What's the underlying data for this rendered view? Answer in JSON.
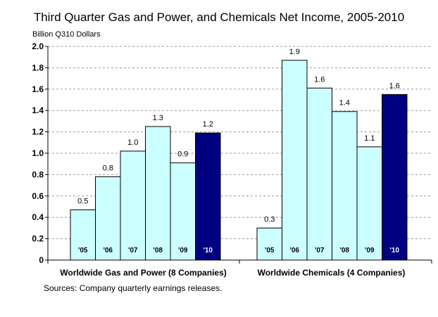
{
  "chart_data": {
    "type": "bar",
    "title": "Third Quarter Gas and Power, and Chemicals Net Income, 2005-2010",
    "ylabel": "Billion Q310 Dollars",
    "ylim": [
      0,
      2.0
    ],
    "yticks": [
      "0",
      "0.2",
      "0.4",
      "0.6",
      "0.8",
      "1.0",
      "1.2",
      "1.4",
      "1.6",
      "1.8",
      "2.0"
    ],
    "grid": true,
    "categories": [
      "'05",
      "'06",
      "'07",
      "'08",
      "'09",
      "'10"
    ],
    "groups": [
      {
        "name": "Worldwide Gas and Power (8 Companies)",
        "values": [
          0.47,
          0.78,
          1.02,
          1.25,
          0.91,
          1.19
        ],
        "labels": [
          "0.5",
          "0.8",
          "1.0",
          "1.3",
          "0.9",
          "1.2"
        ]
      },
      {
        "name": "Worldwide Chemicals (4 Companies)",
        "values": [
          0.3,
          1.87,
          1.61,
          1.39,
          1.06,
          1.55
        ],
        "labels": [
          "0.3",
          "1.9",
          "1.6",
          "1.4",
          "1.1",
          "1.6"
        ]
      }
    ],
    "colors": {
      "bar_fill": "#ccffff",
      "highlight_fill": "#000080",
      "bar_stroke": "#000000",
      "year_label_light": "#000000",
      "year_label_dark": "#ffffff",
      "grid": "#999999"
    },
    "source": "Sources: Company quarterly earnings releases."
  }
}
